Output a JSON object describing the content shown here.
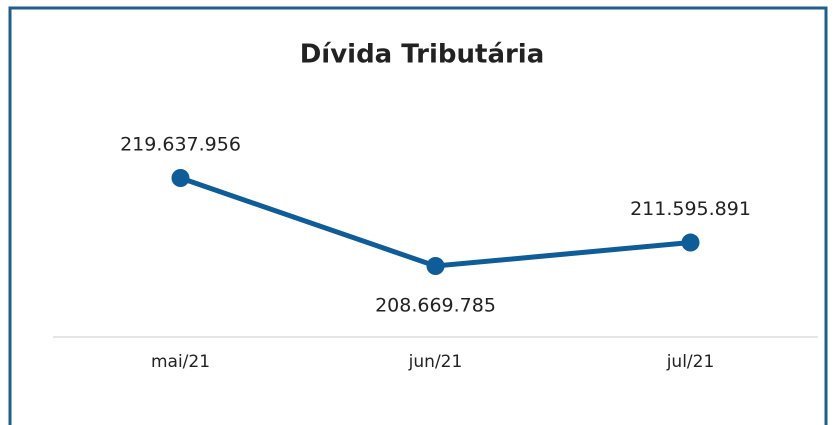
{
  "chart_data": {
    "type": "line",
    "title": "Dívida Tributária",
    "categories": [
      "mai/21",
      "jun/21",
      "jul/21"
    ],
    "series": [
      {
        "color": "#0e5c98",
        "values": [
          219637956,
          208669785,
          211595891
        ],
        "value_labels": [
          "219.637.956",
          "208.669.785",
          "211.595.891"
        ]
      }
    ]
  }
}
